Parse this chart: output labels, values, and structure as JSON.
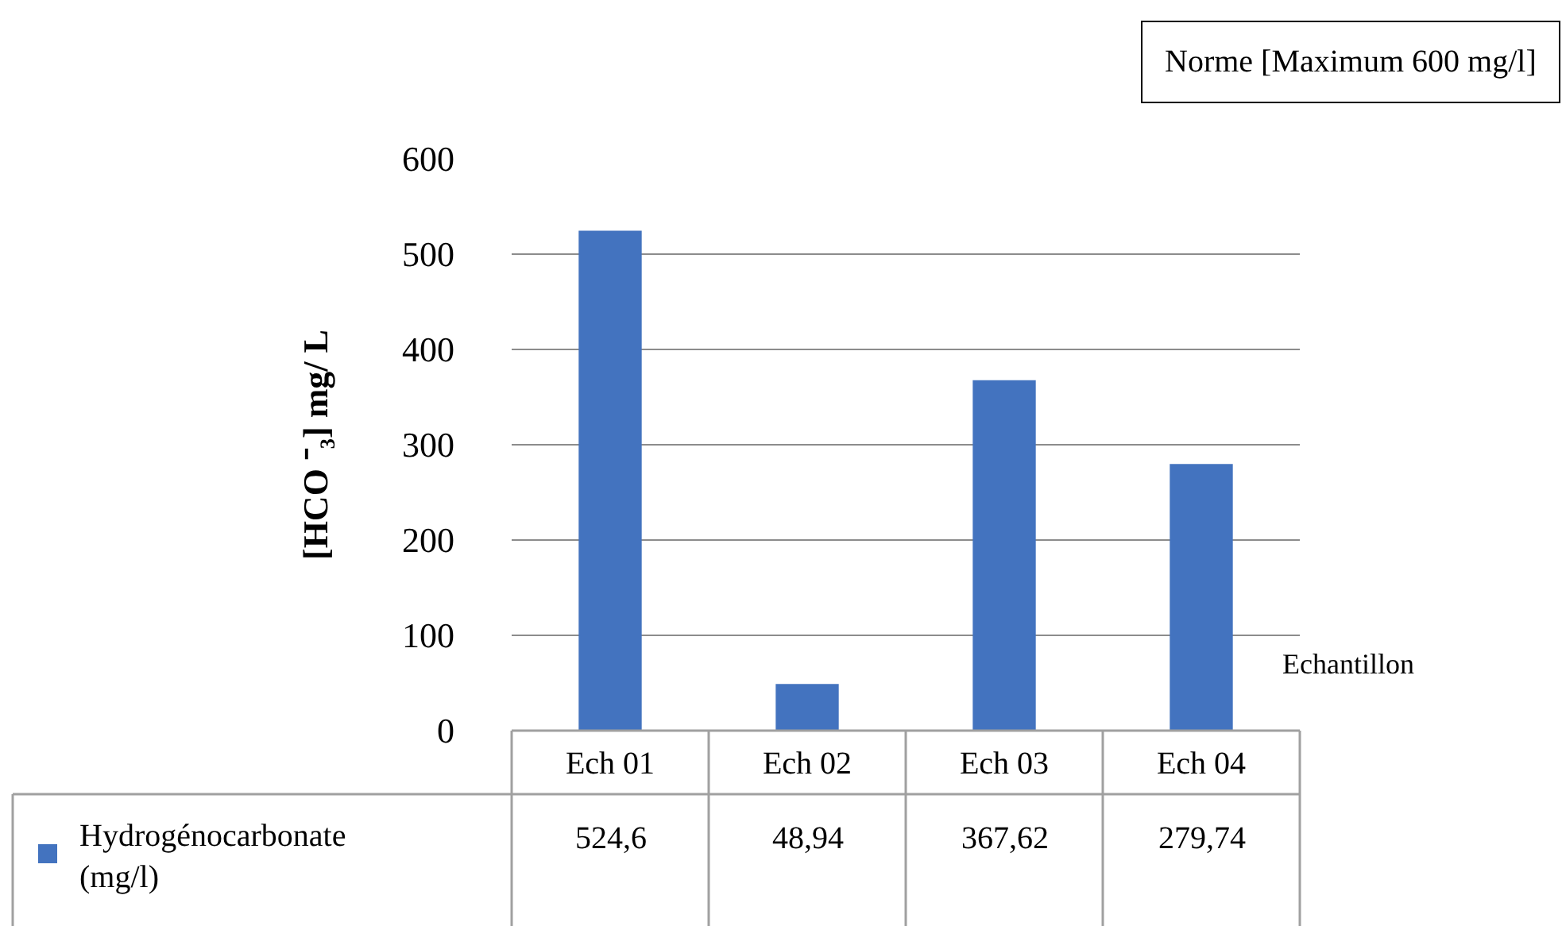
{
  "chart_data": {
    "type": "bar",
    "ylabel": "[HCO ⁻₃] mg/ L",
    "xlabel": "Echantillon",
    "categories": [
      "Ech 01",
      "Ech 02",
      "Ech 03",
      "Ech 04"
    ],
    "series": [
      {
        "name": "Hydrogénocarbonate (mg/l)",
        "color": "#4373bf",
        "values": [
          524.6,
          48.94,
          367.62,
          279.74
        ],
        "value_labels": [
          "524,6",
          "48,94",
          "367,62",
          "279,74"
        ]
      }
    ],
    "ylim": [
      0,
      600
    ],
    "yticks": [
      0,
      100,
      200,
      300,
      400,
      500,
      600
    ],
    "grid": "y",
    "legend": "bottom left",
    "annotations": [
      "Norme [Maximum 600 mg/l]"
    ]
  }
}
